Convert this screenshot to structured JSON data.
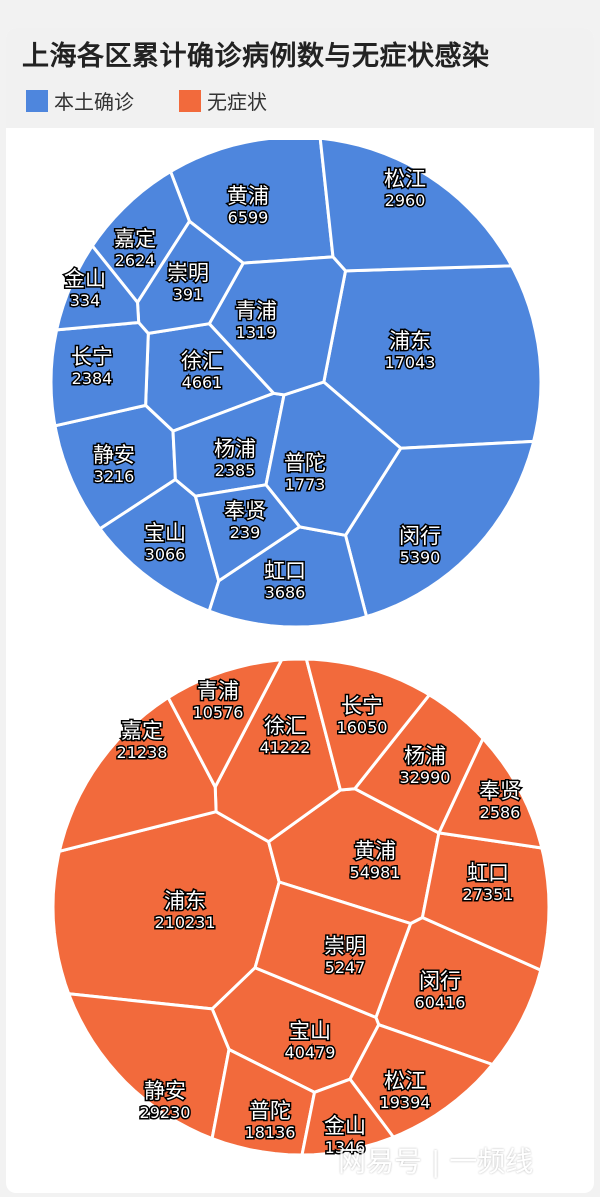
{
  "title": "上海各区累计确诊病例数与无症状感染",
  "legend": [
    {
      "label": "本土确诊",
      "color": "#4e86dd"
    },
    {
      "label": "无症状",
      "color": "#f26a3c"
    }
  ],
  "watermark": "网易号 | 一频线",
  "chart_data": [
    {
      "type": "voronoi-treemap",
      "series": "本土确诊",
      "color": "#4e86dd",
      "data": [
        {
          "name": "浦东",
          "value": 17043
        },
        {
          "name": "黄浦",
          "value": 6599
        },
        {
          "name": "闵行",
          "value": 5390
        },
        {
          "name": "徐汇",
          "value": 4661
        },
        {
          "name": "虹口",
          "value": 3686
        },
        {
          "name": "静安",
          "value": 3216
        },
        {
          "name": "宝山",
          "value": 3066
        },
        {
          "name": "松江",
          "value": 2960
        },
        {
          "name": "嘉定",
          "value": 2624
        },
        {
          "name": "杨浦",
          "value": 2385
        },
        {
          "name": "长宁",
          "value": 2384
        },
        {
          "name": "普陀",
          "value": 1773
        },
        {
          "name": "青浦",
          "value": 1319
        },
        {
          "name": "崇明",
          "value": 391
        },
        {
          "name": "金山",
          "value": 334
        },
        {
          "name": "奉贤",
          "value": 239
        }
      ]
    },
    {
      "type": "voronoi-treemap",
      "series": "无症状",
      "color": "#f26a3c",
      "data": [
        {
          "name": "浦东",
          "value": 210231
        },
        {
          "name": "闵行",
          "value": 60416
        },
        {
          "name": "黄浦",
          "value": 54981
        },
        {
          "name": "徐汇",
          "value": 41222
        },
        {
          "name": "宝山",
          "value": 40479
        },
        {
          "name": "杨浦",
          "value": 32990
        },
        {
          "name": "静安",
          "value": 29230
        },
        {
          "name": "虹口",
          "value": 27351
        },
        {
          "name": "嘉定",
          "value": 21238
        },
        {
          "name": "松江",
          "value": 19394
        },
        {
          "name": "普陀",
          "value": 18136
        },
        {
          "name": "长宁",
          "value": 16050
        },
        {
          "name": "青浦",
          "value": 10576
        },
        {
          "name": "崇明",
          "value": 5247
        },
        {
          "name": "奉贤",
          "value": 2586
        },
        {
          "name": "金山",
          "value": 1346
        }
      ]
    }
  ]
}
